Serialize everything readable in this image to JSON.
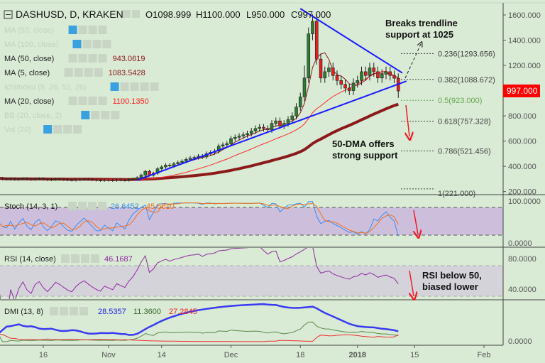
{
  "header": {
    "symbol": "DASHUSD, D, KRAKEN",
    "open": "O1098.999",
    "high": "H1100.000",
    "low": "L950.000",
    "close": "C997.000"
  },
  "watermark": "DASHUSD, D",
  "legends": [
    {
      "label": "MA (50, close)",
      "value": "",
      "hidden": true
    },
    {
      "label": "MA (100, close)",
      "value": "",
      "hidden": true
    },
    {
      "label": "MA (50, close)",
      "value": "943.0619",
      "color": "#8b1a1a",
      "hidden": false
    },
    {
      "label": "MA (5, close)",
      "value": "1083.5428",
      "color": "#8b1a1a",
      "hidden": false
    },
    {
      "label": "Ichimoku (9, 26, 52, 26)",
      "value": "",
      "hidden": true
    },
    {
      "label": "MA (20, close)",
      "value": "1100.1350",
      "color": "#ff1a1a",
      "hidden": false
    },
    {
      "label": "BB (20, close, 2)",
      "value": "",
      "hidden": true
    },
    {
      "label": "Vol (20)",
      "value": "",
      "hidden": true
    }
  ],
  "panes": {
    "stoch": {
      "label": "Stoch (14, 3, 1)",
      "k": "26.6452",
      "d": "45.6010",
      "axis": [
        "100.0000",
        "0.0000"
      ]
    },
    "rsi": {
      "label": "RSI (14, close)",
      "value": "46.1687",
      "axis": [
        "80.0000",
        "40.0000"
      ]
    },
    "dmi": {
      "label": "DMI (13, 8)",
      "adx": "28.5357",
      "pdi": "11.3600",
      "mdi": "27.2845",
      "axis": [
        "0.0000"
      ]
    }
  },
  "last_price": "997.000",
  "colors": {
    "bg": "#d9ead5",
    "up": "#2f7d32",
    "down": "#e02020",
    "ma50": "#8b1a1a",
    "ma20": "#ff2a2a",
    "ma5": "#8b1a1a",
    "trend": "#1a1aff",
    "stochK": "#3b8ef0",
    "stochD": "#f07020",
    "rsi": "#8e2aa0",
    "adx": "#3a3af0",
    "pdi": "#5a8a4a",
    "mdi": "#f03030"
  },
  "chart_data": {
    "type": "candlestick",
    "title": "DASHUSD, D, KRAKEN",
    "start_date": "2017-10-05",
    "closes": [
      305,
      300,
      298,
      302,
      296,
      300,
      303,
      298,
      295,
      300,
      302,
      297,
      293,
      296,
      300,
      298,
      295,
      292,
      290,
      294,
      297,
      299,
      296,
      293,
      290,
      288,
      292,
      290,
      288,
      293,
      291,
      289,
      295,
      300,
      310,
      330,
      360,
      330,
      345,
      380,
      395,
      410,
      405,
      420,
      430,
      440,
      455,
      465,
      470,
      480,
      475,
      500,
      510,
      520,
      560,
      570,
      580,
      620,
      630,
      640,
      650,
      660,
      680,
      700,
      710,
      700,
      690,
      740,
      760,
      720,
      740,
      770,
      800,
      870,
      950,
      1100,
      1450,
      1550,
      1250,
      1100,
      1150,
      1180,
      1120,
      1080,
      1050,
      1020,
      1000,
      1060,
      1080,
      1150,
      1120,
      1180,
      1150,
      1100,
      1130,
      1150,
      1120,
      1098,
      997
    ],
    "price_axis": {
      "ticks": [
        "1600.000",
        "1400.000",
        "1200.000",
        "1000.000",
        "800.000",
        "600.000",
        "400.000",
        "200.000"
      ],
      "values": [
        1600,
        1400,
        1200,
        1000,
        800,
        600,
        400,
        200
      ],
      "range": [
        100,
        1700
      ]
    },
    "time_axis": [
      {
        "label": "16",
        "day": 11
      },
      {
        "label": "Nov",
        "day": 27
      },
      {
        "label": "14",
        "day": 40
      },
      {
        "label": "Dec",
        "day": 57
      },
      {
        "label": "18",
        "day": 74
      },
      {
        "label": "2018",
        "day": 88
      },
      {
        "label": "15",
        "day": 102
      },
      {
        "label": "Feb",
        "day": 119
      }
    ],
    "fib_levels": [
      {
        "label": "0.236(1293.656)",
        "price": 1293.656,
        "color": "#444"
      },
      {
        "label": "0.382(1088.672)",
        "price": 1088.672,
        "color": "#444"
      },
      {
        "label": "0.5(923.000)",
        "price": 923,
        "color": "#6aa84f"
      },
      {
        "label": "0.618(757.328)",
        "price": 757.328,
        "color": "#444"
      },
      {
        "label": "0.786(521.456)",
        "price": 521.456,
        "color": "#444"
      },
      {
        "label": "1(221.000)",
        "price": 221,
        "color": "#444"
      }
    ],
    "trendlines": [
      {
        "name": "support",
        "from": [
          34,
          290
        ],
        "to": [
          100,
          1075
        ]
      },
      {
        "name": "resistance",
        "from": [
          74,
          1650
        ],
        "to": [
          99,
          1140
        ]
      }
    ],
    "annotations": [
      {
        "text": [
          "Breaks trendline",
          "support at 1025"
        ]
      },
      {
        "text": [
          "50-DMA offers",
          "strong support"
        ]
      },
      {
        "text": [
          "RSI below 50,",
          "biased lower"
        ]
      }
    ]
  }
}
